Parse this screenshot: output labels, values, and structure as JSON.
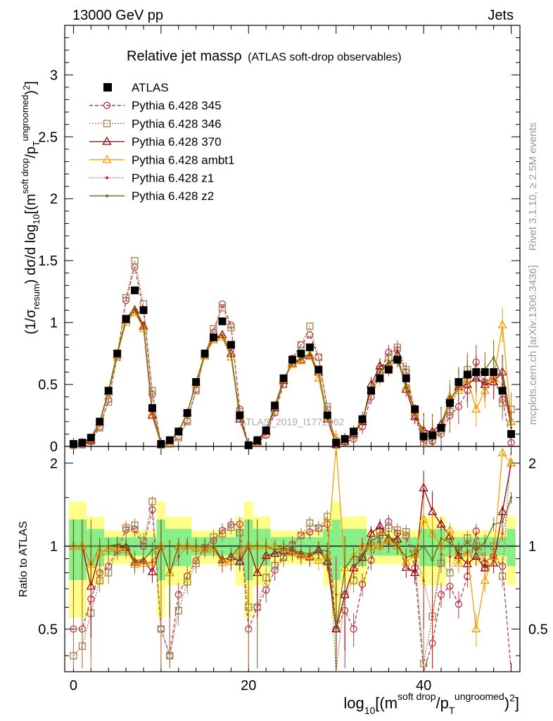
{
  "header": {
    "left": "13000 GeV pp",
    "right": "Jets"
  },
  "side_labels": {
    "rivet": "Rivet 3.1.10, ≥ 2.5M events",
    "mcplots": "mcplots.cern.ch [arXiv:1306.3436]"
  },
  "watermark": "ATLAS_2019_I1772062",
  "chart_data": {
    "type": "line",
    "title_main": "Relative jet massρ",
    "title_sub": "(ATLAS soft-drop observables)",
    "ylabel_parts": {
      "a": "(1/σ",
      "b": "resum",
      "c": ") dσ/d log",
      "d": "10",
      "e": "[(m",
      "f": "soft drop",
      "g": "/p",
      "h": "T",
      "i": "ungroomed",
      "j": ")",
      "k": "2",
      "l": "]"
    },
    "xlabel_parts": {
      "a": "log",
      "b": "10",
      "c": "[(m",
      "d": "soft drop",
      "e": "/p",
      "f": "T",
      "g": "ungroomed",
      "h": ")",
      "i": "2",
      "j": "]"
    },
    "ratio_ylabel": "Ratio to ATLAS",
    "xlim": [
      -1,
      51
    ],
    "ylim": [
      0,
      3.4
    ],
    "ratio_ylim": [
      0.35,
      2.3
    ],
    "xticks": [
      0,
      20,
      40
    ],
    "yticks": [
      "0",
      "0.5",
      "1",
      "1.5",
      "2",
      "2.5",
      "3"
    ],
    "ratio_yticks": [
      "0.5",
      "1",
      "2"
    ],
    "x": [
      0,
      1,
      2,
      3,
      4,
      5,
      6,
      7,
      8,
      9,
      10,
      11,
      12,
      13,
      14,
      15,
      16,
      17,
      18,
      19,
      20,
      21,
      22,
      23,
      24,
      25,
      26,
      27,
      28,
      29,
      30,
      31,
      32,
      33,
      34,
      35,
      36,
      37,
      38,
      39,
      40,
      41,
      42,
      43,
      44,
      45,
      46,
      47,
      48,
      49,
      50
    ],
    "atlas": [
      0.02,
      0.03,
      0.07,
      0.2,
      0.45,
      0.75,
      1.03,
      1.26,
      1.1,
      0.31,
      0.02,
      0.05,
      0.12,
      0.27,
      0.52,
      0.75,
      0.88,
      1.01,
      0.82,
      0.25,
      0.01,
      0.05,
      0.13,
      0.33,
      0.55,
      0.7,
      0.75,
      0.8,
      0.62,
      0.25,
      0.03,
      0.06,
      0.12,
      0.22,
      0.45,
      0.55,
      0.62,
      0.7,
      0.55,
      0.3,
      0.08,
      0.09,
      0.15,
      0.35,
      0.52,
      0.58,
      0.6,
      0.6,
      0.6,
      0.45,
      0.1
    ],
    "series": [
      {
        "name": "Pythia 6.428 345",
        "color": "#b8364a",
        "marker": "circle",
        "dash": "5,3",
        "values": [
          0.01,
          0.015,
          0.045,
          0.16,
          0.38,
          0.73,
          1.18,
          1.45,
          1.1,
          0.42,
          0.01,
          0.02,
          0.08,
          0.21,
          0.46,
          0.74,
          0.92,
          1.15,
          0.98,
          0.3,
          0.005,
          0.03,
          0.09,
          0.27,
          0.5,
          0.71,
          0.82,
          0.9,
          0.72,
          0.3,
          0.015,
          0.035,
          0.06,
          0.16,
          0.4,
          0.6,
          0.76,
          0.78,
          0.6,
          0.25,
          0.02,
          0.04,
          0.1,
          0.25,
          0.32,
          0.45,
          0.68,
          0.52,
          0.55,
          0.38,
          0.03
        ]
      },
      {
        "name": "Pythia 6.428 346",
        "color": "#a58046",
        "marker": "square",
        "dash": "2,2",
        "values": [
          0.008,
          0.013,
          0.04,
          0.15,
          0.36,
          0.72,
          1.2,
          1.5,
          1.15,
          0.45,
          0.01,
          0.02,
          0.07,
          0.2,
          0.45,
          0.74,
          0.95,
          1.12,
          0.96,
          0.28,
          0.006,
          0.03,
          0.1,
          0.28,
          0.5,
          0.7,
          0.82,
          0.97,
          0.72,
          0.32,
          0.01,
          0.04,
          0.09,
          0.2,
          0.45,
          0.62,
          0.72,
          0.8,
          0.62,
          0.28,
          0.03,
          0.05,
          0.13,
          0.28,
          0.5,
          0.62,
          0.6,
          0.5,
          0.6,
          0.35,
          0.3
        ]
      },
      {
        "name": "Pythia 6.428 370",
        "color": "#990010",
        "marker": "triangle",
        "dash": "",
        "values": [
          0.02,
          0.03,
          0.05,
          0.19,
          0.44,
          0.74,
          1.02,
          1.1,
          0.97,
          0.25,
          0.02,
          0.04,
          0.12,
          0.27,
          0.51,
          0.73,
          0.86,
          0.9,
          0.75,
          0.22,
          0.01,
          0.04,
          0.12,
          0.31,
          0.53,
          0.67,
          0.7,
          0.73,
          0.6,
          0.22,
          0.015,
          0.04,
          0.1,
          0.2,
          0.5,
          0.65,
          0.66,
          0.74,
          0.46,
          0.24,
          0.13,
          0.12,
          0.18,
          0.38,
          0.48,
          0.5,
          0.55,
          0.5,
          0.52,
          0.6,
          0.2
        ]
      },
      {
        "name": "Pythia 6.428 ambt1",
        "color": "#f0a000",
        "marker": "triangle",
        "dash": "",
        "values": [
          0.02,
          0.03,
          0.06,
          0.19,
          0.44,
          0.74,
          1.0,
          1.08,
          0.95,
          0.27,
          0.02,
          0.04,
          0.12,
          0.27,
          0.51,
          0.73,
          0.86,
          0.88,
          0.72,
          0.24,
          0.01,
          0.05,
          0.13,
          0.33,
          0.54,
          0.66,
          0.69,
          0.74,
          0.55,
          0.23,
          0.07,
          0.05,
          0.11,
          0.22,
          0.45,
          0.55,
          0.65,
          0.7,
          0.48,
          0.28,
          0.1,
          0.1,
          0.15,
          0.4,
          0.45,
          0.55,
          0.3,
          0.45,
          0.55,
          0.98,
          0.2
        ]
      },
      {
        "name": "Pythia 6.428 z1",
        "color": "#cc2020",
        "marker": "dot",
        "dash": "1,2",
        "values": [
          0.02,
          0.03,
          0.06,
          0.2,
          0.45,
          0.75,
          1.02,
          1.1,
          0.96,
          0.27,
          0.02,
          0.04,
          0.11,
          0.27,
          0.52,
          0.74,
          0.87,
          0.88,
          0.73,
          0.23,
          0.01,
          0.04,
          0.12,
          0.31,
          0.54,
          0.67,
          0.7,
          0.74,
          0.6,
          0.23,
          0.02,
          0.04,
          0.1,
          0.22,
          0.45,
          0.57,
          0.63,
          0.7,
          0.5,
          0.28,
          0.06,
          0.05,
          0.14,
          0.32,
          0.48,
          0.55,
          0.6,
          0.53,
          0.55,
          0.5,
          0.15
        ]
      },
      {
        "name": "Pythia 6.428 z2",
        "color": "#6b6b10",
        "marker": "dot",
        "dash": "",
        "values": [
          0.02,
          0.03,
          0.07,
          0.2,
          0.45,
          0.76,
          1.03,
          1.12,
          0.98,
          0.3,
          0.02,
          0.04,
          0.12,
          0.27,
          0.52,
          0.75,
          0.88,
          0.9,
          0.75,
          0.25,
          0.01,
          0.05,
          0.13,
          0.32,
          0.54,
          0.68,
          0.71,
          0.75,
          0.6,
          0.24,
          0.015,
          0.05,
          0.11,
          0.2,
          0.47,
          0.6,
          0.68,
          0.7,
          0.5,
          0.28,
          0.08,
          0.08,
          0.16,
          0.36,
          0.5,
          0.6,
          0.58,
          0.62,
          0.72,
          0.55,
          0.15
        ]
      }
    ]
  }
}
